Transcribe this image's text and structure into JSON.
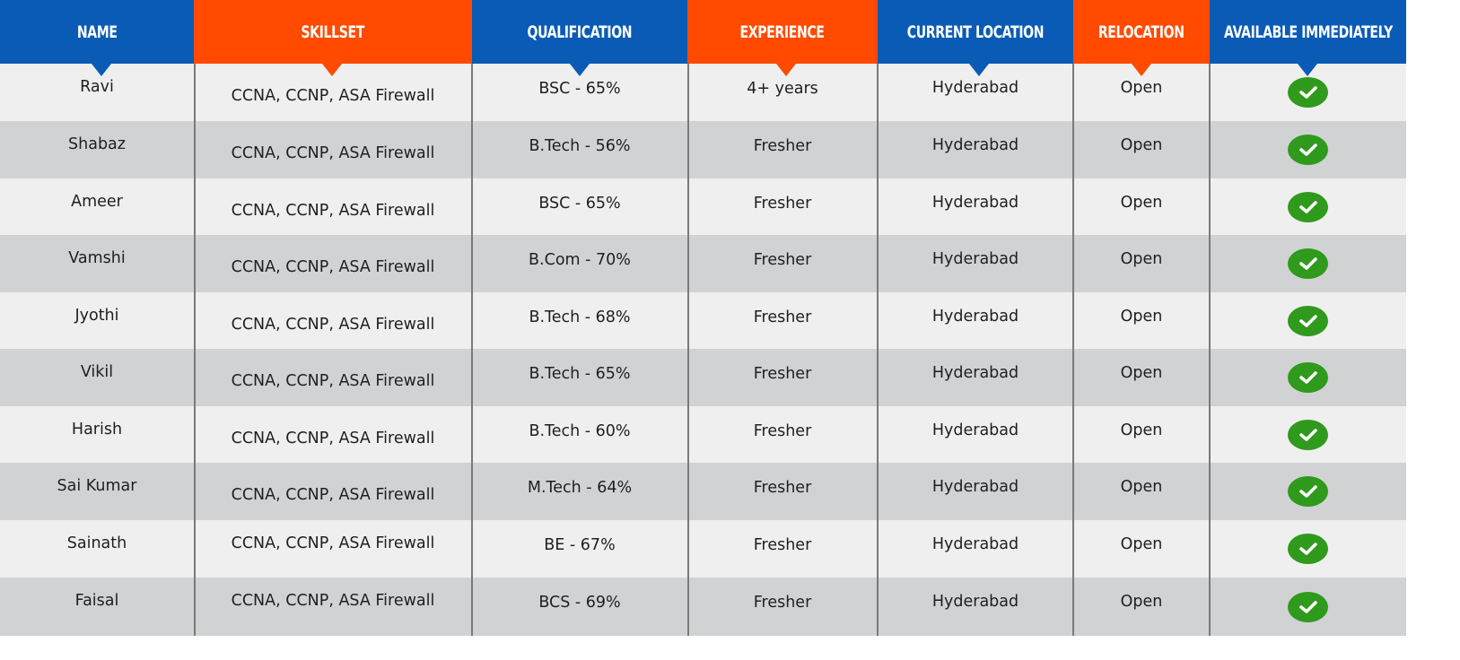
{
  "colors": {
    "header_blue": "#0a5bb5",
    "header_orange": "#ff4a00",
    "row_light": "#efefef",
    "row_dark": "#d1d2d4",
    "check_green": "#2f9a1c"
  },
  "columns": [
    {
      "label": "NAME",
      "color": "blue",
      "icon": "caret-down-icon"
    },
    {
      "label": "SKILLSET",
      "color": "orange",
      "icon": "caret-down-icon"
    },
    {
      "label": "QUALIFICATION",
      "color": "blue",
      "icon": "caret-down-icon"
    },
    {
      "label": "EXPERIENCE",
      "color": "orange",
      "icon": "caret-down-icon"
    },
    {
      "label": "CURRENT LOCATION",
      "color": "blue",
      "icon": "caret-down-icon"
    },
    {
      "label": "RELOCATION",
      "color": "orange",
      "icon": "caret-down-icon"
    },
    {
      "label": "AVAILABLE IMMEDIATELY",
      "color": "blue",
      "icon": "caret-down-icon"
    }
  ],
  "rows": [
    {
      "name": "Ravi",
      "skillset": "CCNA, CCNP,  ASA Firewall",
      "qualification": "BSC - 65%",
      "experience": "4+ years",
      "location": "Hyderabad",
      "relocation": "Open",
      "available": true
    },
    {
      "name": "Shabaz",
      "skillset": "CCNA, CCNP,  ASA Firewall",
      "qualification": "B.Tech - 56%",
      "experience": "Fresher",
      "location": "Hyderabad",
      "relocation": "Open",
      "available": true
    },
    {
      "name": "Ameer",
      "skillset": "CCNA, CCNP,  ASA Firewall",
      "qualification": "BSC - 65%",
      "experience": "Fresher",
      "location": "Hyderabad",
      "relocation": "Open",
      "available": true
    },
    {
      "name": "Vamshi",
      "skillset": "CCNA, CCNP,  ASA Firewall",
      "qualification": "B.Com - 70%",
      "experience": "Fresher",
      "location": "Hyderabad",
      "relocation": "Open",
      "available": true
    },
    {
      "name": "Jyothi",
      "skillset": "CCNA, CCNP,  ASA Firewall",
      "qualification": "B.Tech - 68%",
      "experience": "Fresher",
      "location": "Hyderabad",
      "relocation": "Open",
      "available": true
    },
    {
      "name": "Vikil",
      "skillset": "CCNA, CCNP,  ASA Firewall",
      "qualification": "B.Tech - 65%",
      "experience": "Fresher",
      "location": "Hyderabad",
      "relocation": "Open",
      "available": true
    },
    {
      "name": "Harish",
      "skillset": "CCNA, CCNP,  ASA Firewall",
      "qualification": "B.Tech - 60%",
      "experience": "Fresher",
      "location": "Hyderabad",
      "relocation": "Open",
      "available": true
    },
    {
      "name": "Sai Kumar",
      "skillset": "CCNA, CCNP,  ASA Firewall",
      "qualification": "M.Tech - 64%",
      "experience": "Fresher",
      "location": "Hyderabad",
      "relocation": "Open",
      "available": true
    },
    {
      "name": "Sainath",
      "skillset": "CCNA, CCNP,  ASA Firewall",
      "qualification": "BE - 67%",
      "experience": "Fresher",
      "location": "Hyderabad",
      "relocation": "Open",
      "available": true
    },
    {
      "name": "Faisal",
      "skillset": "CCNA, CCNP,  ASA Firewall",
      "qualification": "BCS - 69%",
      "experience": "Fresher",
      "location": "Hyderabad",
      "relocation": "Open",
      "available": true
    }
  ]
}
